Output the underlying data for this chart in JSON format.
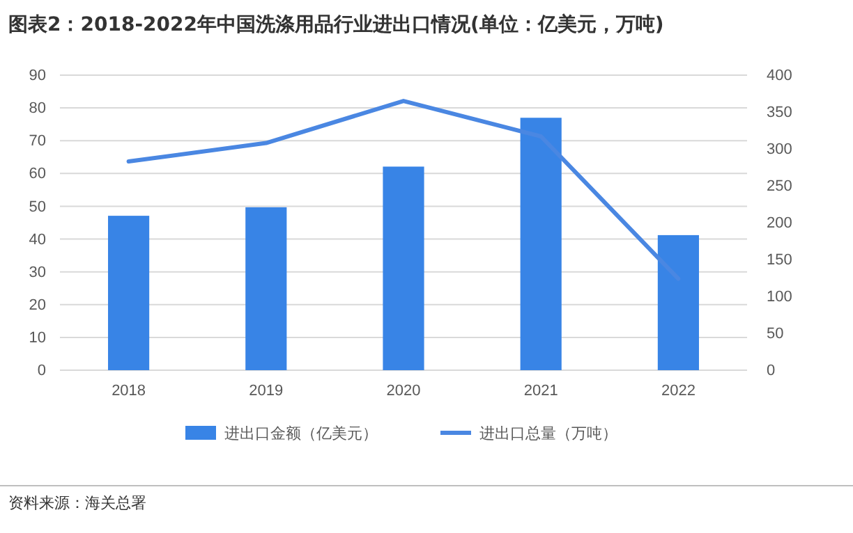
{
  "chart_data": {
    "type": "bar",
    "title": "图表2：2018-2022年中国洗涤用品行业进出口情况(单位：亿美元，万吨)",
    "categories": [
      "2018",
      "2019",
      "2020",
      "2021",
      "2022"
    ],
    "series": [
      {
        "name": "进出口金额（亿美元）",
        "color": "#3884e6",
        "values": [
          47.1,
          49.7,
          62.1,
          77.0,
          41.2
        ]
      },
      {
        "name": "进出口总量（万吨）",
        "type": "line",
        "axis": "y2",
        "color": "#4a87e2",
        "values": [
          283,
          308,
          365,
          317,
          124
        ]
      }
    ],
    "ylim": [
      0,
      90
    ],
    "yticks": [
      0,
      10,
      20,
      30,
      40,
      50,
      60,
      70,
      80,
      90
    ],
    "y2lim": [
      0,
      400
    ],
    "y2ticks": [
      0,
      50,
      100,
      150,
      200,
      250,
      300,
      350,
      400
    ],
    "grid": "y",
    "legend": "bottom",
    "marker": "none",
    "annotations": [
      "资料来源：海关总署"
    ]
  }
}
